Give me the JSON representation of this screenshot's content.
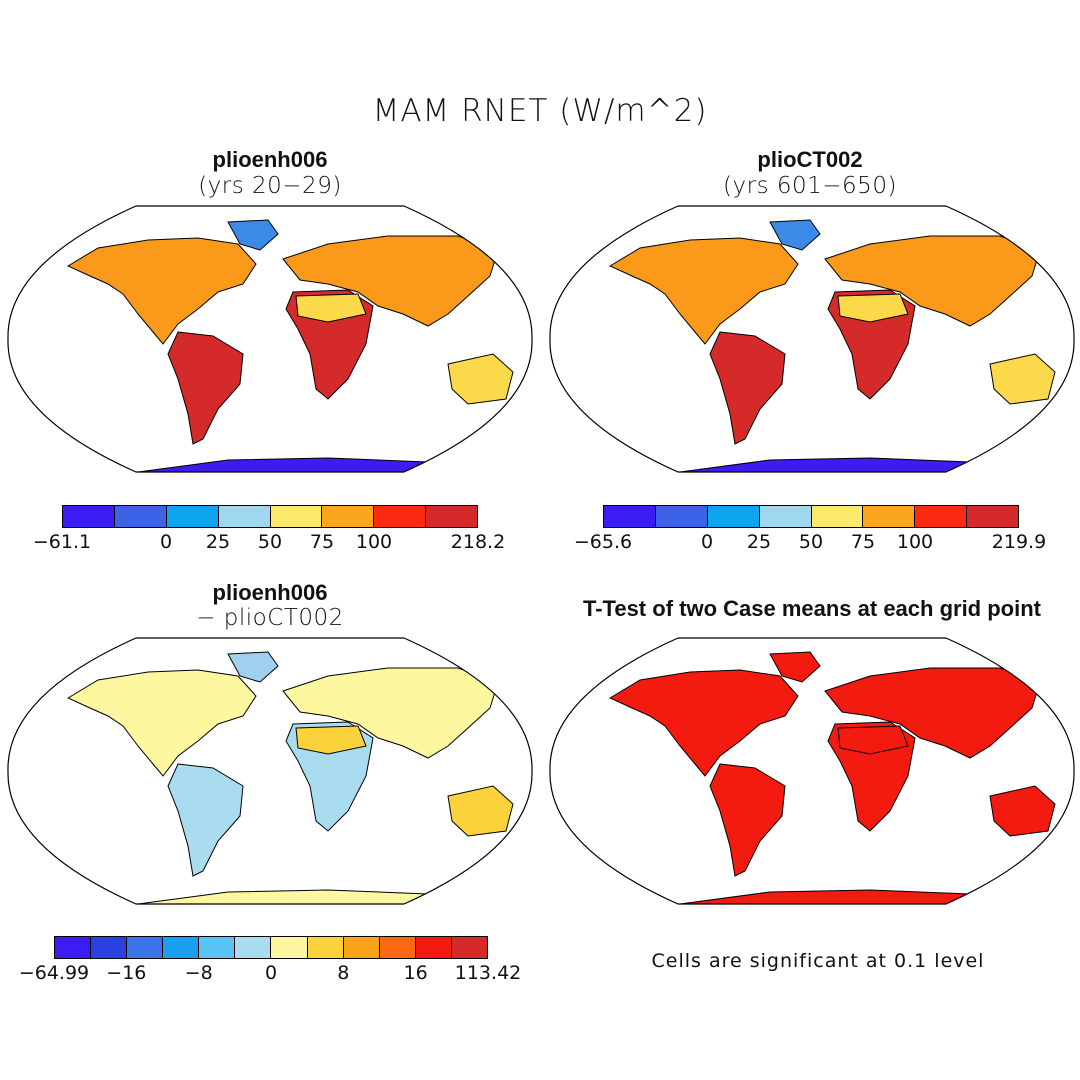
{
  "figure": {
    "title": "MAM RNET (W/m^2)"
  },
  "panels": [
    {
      "id": "p1",
      "title": "plioenh006",
      "subtitle": "(yrs 20-29)",
      "colorbar": {
        "colors": [
          "#3b1cf2",
          "#3c62e6",
          "#0ea5f0",
          "#9fd7ef",
          "#fbe96a",
          "#fba61d",
          "#fb2a10",
          "#d42a2a"
        ],
        "ticks": [
          {
            "label": "-61.1",
            "index": 0
          },
          {
            "label": "0",
            "index": 2
          },
          {
            "label": "25",
            "index": 3
          },
          {
            "label": "50",
            "index": 4
          },
          {
            "label": "75",
            "index": 5
          },
          {
            "label": "100",
            "index": 6
          },
          {
            "label": "218.2",
            "index": 8
          }
        ]
      }
    },
    {
      "id": "p2",
      "title": "plioCT002",
      "subtitle": "(yrs 601-650)",
      "colorbar": {
        "colors": [
          "#3b1cf2",
          "#3c62e6",
          "#0ea5f0",
          "#9fd7ef",
          "#fbe96a",
          "#fba61d",
          "#fb2a10",
          "#d42a2a"
        ],
        "ticks": [
          {
            "label": "-65.6",
            "index": 0
          },
          {
            "label": "0",
            "index": 2
          },
          {
            "label": "25",
            "index": 3
          },
          {
            "label": "50",
            "index": 4
          },
          {
            "label": "75",
            "index": 5
          },
          {
            "label": "100",
            "index": 6
          },
          {
            "label": "219.9",
            "index": 8
          }
        ]
      }
    },
    {
      "id": "p3",
      "title": "plioenh006",
      "subtitle": "- plioCT002",
      "colorbar": {
        "colors": [
          "#3b1cf2",
          "#2a40e0",
          "#3c74e8",
          "#1aa0f0",
          "#58c3f5",
          "#a9dcef",
          "#fdf7a0",
          "#fcd23c",
          "#fba31a",
          "#fb6a10",
          "#f31a10",
          "#d42a2a"
        ],
        "ticks": [
          {
            "label": "-64.99",
            "index": 0
          },
          {
            "label": "-16",
            "index": 2
          },
          {
            "label": "-8",
            "index": 4
          },
          {
            "label": "0",
            "index": 6
          },
          {
            "label": "8",
            "index": 8
          },
          {
            "label": "16",
            "index": 10
          },
          {
            "label": "113.42",
            "index": 12
          }
        ]
      }
    },
    {
      "id": "p4",
      "title": "T-Test of two Case means at each grid point",
      "subtitle": "",
      "note": "Cells are significant at 0.1 level"
    }
  ],
  "map_fill_colors": {
    "p1": {
      "north": "#3c8ae8",
      "mid": "#fb9a1a",
      "tropic": "#d42a2a",
      "desert": "#fbd94a",
      "antarctica": "#3b1cf2"
    },
    "p2": {
      "north": "#3c8ae8",
      "mid": "#fb9a1a",
      "tropic": "#d42a2a",
      "desert": "#fbd94a",
      "antarctica": "#3b1cf2"
    },
    "p3": {
      "north": "#9fd0ef",
      "mid": "#fdf7a0",
      "tropic": "#a9dcef",
      "desert": "#fcd23c",
      "antarctica": "#fdf7a0"
    },
    "p4": {
      "north": "#f31a10",
      "mid": "#f31a10",
      "tropic": "#f31a10",
      "desert": "#f31a10",
      "antarctica": "#f31a10"
    }
  }
}
